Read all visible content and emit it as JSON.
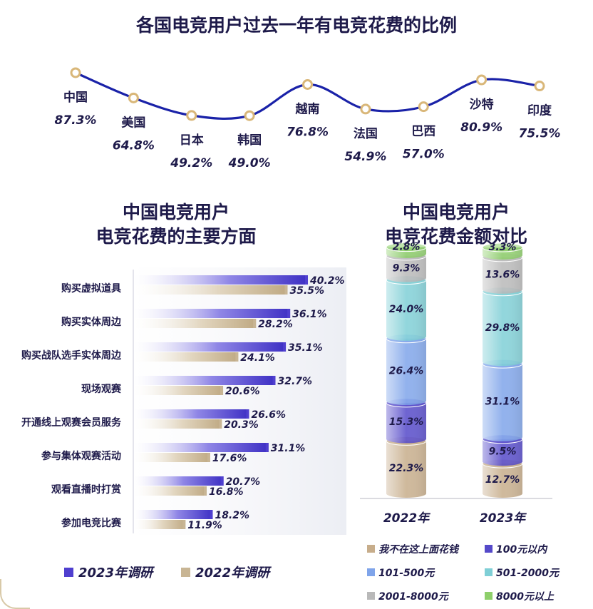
{
  "chart_data": [
    {
      "type": "line",
      "title": "各国电竞用户过去一年有电竞花费的比例",
      "categories": [
        "中国",
        "美国",
        "日本",
        "韩国",
        "越南",
        "法国",
        "巴西",
        "沙特",
        "印度"
      ],
      "values": [
        87.3,
        64.8,
        49.2,
        49.0,
        76.8,
        54.9,
        57.0,
        80.9,
        75.5
      ],
      "value_labels": [
        "87.3%",
        "64.8%",
        "49.2%",
        "49.0%",
        "76.8%",
        "54.9%",
        "57.0%",
        "80.9%",
        "75.5%"
      ],
      "line_color": "#1a22a8",
      "marker_color": "#d9b779"
    },
    {
      "type": "bar",
      "orientation": "horizontal",
      "title_lines": [
        "中国电竞用户",
        "电竞花费的主要方面"
      ],
      "categories": [
        "购买虚拟道具",
        "购买实体周边",
        "购买战队选手实体周边",
        "现场观赛",
        "开通线上观赛会员服务",
        "参与集体观赛活动",
        "观看直播时打赏",
        "参加电竞比赛"
      ],
      "series": [
        {
          "name": "2023年调研",
          "color": "#4f3fcf",
          "values": [
            40.2,
            36.1,
            35.1,
            32.7,
            26.6,
            31.1,
            20.7,
            18.2
          ],
          "labels": [
            "40.2%",
            "36.1%",
            "35.1%",
            "32.7%",
            "26.6%",
            "31.1%",
            "20.7%",
            "18.2%"
          ]
        },
        {
          "name": "2022年调研",
          "color": "#c8b594",
          "values": [
            35.5,
            28.2,
            24.1,
            20.6,
            20.3,
            17.6,
            16.8,
            11.9
          ],
          "labels": [
            "35.5%",
            "28.2%",
            "24.1%",
            "20.6%",
            "20.3%",
            "17.6%",
            "16.8%",
            "11.9%"
          ]
        }
      ],
      "xlim": [
        0,
        45
      ]
    },
    {
      "type": "bar",
      "stacked": true,
      "title_lines": [
        "中国电竞用户",
        "电竞花费金额对比"
      ],
      "categories": [
        "2022年",
        "2023年"
      ],
      "series": [
        {
          "name": "我不在这上面花钱",
          "color": "#c7ad8b",
          "values": [
            22.3,
            12.7
          ],
          "labels": [
            "22.3%",
            "12.7%"
          ]
        },
        {
          "name": "100元以内",
          "color": "#5549c9",
          "values": [
            15.3,
            9.5
          ],
          "labels": [
            "15.3%",
            "9.5%"
          ]
        },
        {
          "name": "101-500元",
          "color": "#7fa4ea",
          "values": [
            26.4,
            31.1
          ],
          "labels": [
            "26.4%",
            "31.1%"
          ]
        },
        {
          "name": "501-2000元",
          "color": "#7fcfd6",
          "values": [
            24.0,
            29.8
          ],
          "labels": [
            "24.0%",
            "29.8%"
          ]
        },
        {
          "name": "2001-8000元",
          "color": "#b9b9b9",
          "values": [
            9.3,
            13.6
          ],
          "labels": [
            "9.3%",
            "13.6%"
          ]
        },
        {
          "name": "8000元以上",
          "color": "#8ecf6b",
          "values": [
            2.8,
            3.3
          ],
          "labels": [
            "2.8%",
            "3.3%"
          ]
        }
      ]
    }
  ]
}
